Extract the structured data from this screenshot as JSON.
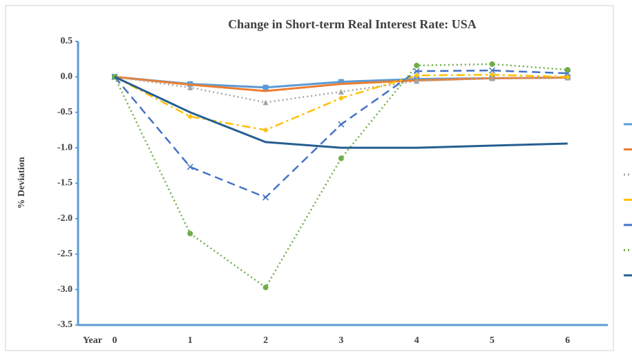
{
  "chart_data": {
    "type": "line",
    "title": "Change in Short-term Real Interest Rate: USA",
    "y_label": "% Deviation",
    "x_label": "Year",
    "categories": [
      "0",
      "1",
      "2",
      "3",
      "4",
      "5",
      "6"
    ],
    "series": [
      {
        "color": "#5b9bd5",
        "dash": "solid",
        "marker": "square",
        "values": [
          0,
          -0.1,
          -0.15,
          -0.07,
          -0.03,
          -0.02,
          -0.01
        ]
      },
      {
        "color": "#ed7d31",
        "dash": "solid",
        "marker": "none",
        "values": [
          0,
          -0.11,
          -0.2,
          -0.1,
          -0.05,
          -0.02,
          -0.01
        ]
      },
      {
        "color": "#a5a5a5",
        "dash": "dot",
        "marker": "triangle",
        "values": [
          0,
          -0.15,
          -0.36,
          -0.21,
          -0.06,
          -0.02,
          -0.01
        ]
      },
      {
        "color": "#ffc000",
        "dash": "dashdot",
        "marker": "diamond",
        "values": [
          0,
          -0.56,
          -0.75,
          -0.3,
          0.02,
          0.03,
          0.0
        ]
      },
      {
        "color": "#4472c4",
        "dash": "dash",
        "marker": "cross",
        "values": [
          0,
          -1.27,
          -1.7,
          -0.67,
          0.08,
          0.09,
          0.05
        ]
      },
      {
        "color": "#70ad47",
        "dash": "dot",
        "marker": "circle",
        "values": [
          0,
          -2.21,
          -2.97,
          -1.15,
          0.16,
          0.18,
          0.1
        ]
      },
      {
        "color": "#255e91",
        "dash": "solid",
        "marker": "none",
        "values": [
          0,
          -0.5,
          -0.92,
          -1.0,
          -1.0,
          -0.97,
          -0.94
        ]
      }
    ],
    "ylim": [
      -3.5,
      0.5
    ],
    "yticks": [
      0.5,
      {
        "value": 0,
        "label": "0.0"
      },
      -0.5,
      {
        "value": -1,
        "label": "-1.0"
      },
      -1.5,
      {
        "value": -2,
        "label": "-2.0"
      },
      -2.5,
      {
        "value": -3,
        "label": "-3.0"
      },
      -3.5
    ],
    "grid": false
  }
}
